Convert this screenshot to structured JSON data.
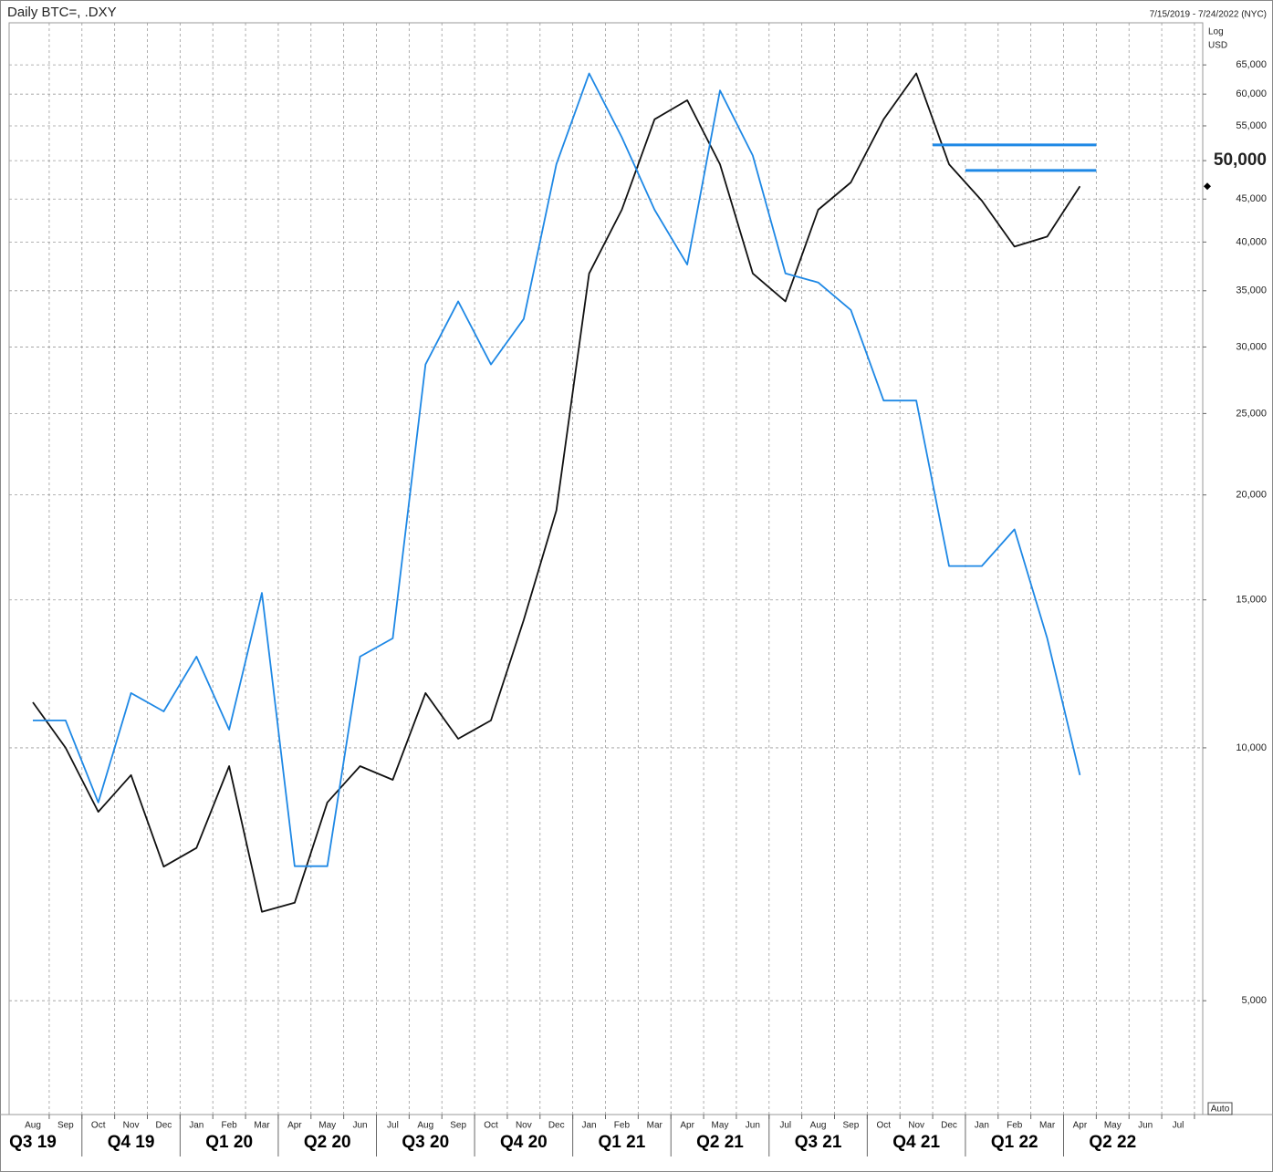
{
  "chart_data": {
    "type": "line",
    "title": "Daily BTC=, .DXY",
    "date_range": "7/15/2019 - 7/24/2022 (NYC)",
    "scale_label": "Log",
    "unit_label": "USD",
    "auto_label": "Auto",
    "log_scale": true,
    "grid": true,
    "last_value_marker": true,
    "x": [
      "2019-08",
      "2019-09",
      "2019-10",
      "2019-11",
      "2019-12",
      "2020-01",
      "2020-02",
      "2020-03",
      "2020-04",
      "2020-05",
      "2020-06",
      "2020-07",
      "2020-08",
      "2020-09",
      "2020-10",
      "2020-11",
      "2020-12",
      "2021-01",
      "2021-02",
      "2021-03",
      "2021-04",
      "2021-05",
      "2021-06",
      "2021-07",
      "2021-08",
      "2021-09",
      "2021-10",
      "2021-11",
      "2021-12",
      "2022-01",
      "2022-02",
      "2022-03",
      "2022-04"
    ],
    "series": [
      {
        "color": "#111111",
        "values": [
          11330,
          10000,
          8390,
          9280,
          7220,
          7600,
          9510,
          6380,
          6540,
          8610,
          9510,
          9160,
          11620,
          10250,
          10780,
          14190,
          19170,
          36700,
          43700,
          56000,
          59000,
          49500,
          36700,
          34000,
          43700,
          47100,
          56000,
          63500,
          49500,
          44800,
          39500,
          40600,
          46600
        ]
      },
      {
        "color": "#1e88e5",
        "values": [
          10780,
          10780,
          8610,
          11620,
          11050,
          12840,
          10510,
          15290,
          7230,
          7230,
          12840,
          13500,
          28600,
          34000,
          28600,
          32400,
          49500,
          63500,
          53300,
          43700,
          37600,
          60600,
          50700,
          36700,
          35800,
          33200,
          25900,
          25900,
          16460,
          16460,
          18200,
          13500,
          9280
        ]
      }
    ],
    "levels": [
      {
        "value": 52200,
        "start": "2021-12",
        "end": "2022-05",
        "color": "#1e88e5"
      },
      {
        "value": 48680,
        "start": "2022-01",
        "end": "2022-05",
        "color": "#1e88e5"
      }
    ],
    "ylim": [
      3660,
      72950
    ],
    "yticks": [
      {
        "value": 5000,
        "label": "5,000"
      },
      {
        "value": 10000,
        "label": "10,000"
      },
      {
        "value": 15000,
        "label": "15,000"
      },
      {
        "value": 20000,
        "label": "20,000"
      },
      {
        "value": 25000,
        "label": "25,000"
      },
      {
        "value": 30000,
        "label": "30,000"
      },
      {
        "value": 35000,
        "label": "35,000"
      },
      {
        "value": 40000,
        "label": "40,000"
      },
      {
        "value": 45000,
        "label": "45,000"
      },
      {
        "value": 50000,
        "label": "50,000",
        "bold": true
      },
      {
        "value": 55000,
        "label": "55,000"
      },
      {
        "value": 60000,
        "label": "60,000"
      },
      {
        "value": 65000,
        "label": "65,000"
      }
    ],
    "xticks": [
      {
        "value": "2019-08",
        "label": "Aug"
      },
      {
        "value": "2019-09",
        "label": "Sep"
      },
      {
        "value": "2019-10",
        "label": "Oct"
      },
      {
        "value": "2019-11",
        "label": "Nov"
      },
      {
        "value": "2019-12",
        "label": "Dec"
      },
      {
        "value": "2020-01",
        "label": "Jan"
      },
      {
        "value": "2020-02",
        "label": "Feb"
      },
      {
        "value": "2020-03",
        "label": "Mar"
      },
      {
        "value": "2020-04",
        "label": "Apr"
      },
      {
        "value": "2020-05",
        "label": "May"
      },
      {
        "value": "2020-06",
        "label": "Jun"
      },
      {
        "value": "2020-07",
        "label": "Jul"
      },
      {
        "value": "2020-08",
        "label": "Aug"
      },
      {
        "value": "2020-09",
        "label": "Sep"
      },
      {
        "value": "2020-10",
        "label": "Oct"
      },
      {
        "value": "2020-11",
        "label": "Nov"
      },
      {
        "value": "2020-12",
        "label": "Dec"
      },
      {
        "value": "2021-01",
        "label": "Jan"
      },
      {
        "value": "2021-02",
        "label": "Feb"
      },
      {
        "value": "2021-03",
        "label": "Mar"
      },
      {
        "value": "2021-04",
        "label": "Apr"
      },
      {
        "value": "2021-05",
        "label": "May"
      },
      {
        "value": "2021-06",
        "label": "Jun"
      },
      {
        "value": "2021-07",
        "label": "Jul"
      },
      {
        "value": "2021-08",
        "label": "Aug"
      },
      {
        "value": "2021-09",
        "label": "Sep"
      },
      {
        "value": "2021-10",
        "label": "Oct"
      },
      {
        "value": "2021-11",
        "label": "Nov"
      },
      {
        "value": "2021-12",
        "label": "Dec"
      },
      {
        "value": "2022-01",
        "label": "Jan"
      },
      {
        "value": "2022-02",
        "label": "Feb"
      },
      {
        "value": "2022-03",
        "label": "Mar"
      },
      {
        "value": "2022-04",
        "label": "Apr"
      },
      {
        "value": "2022-05",
        "label": "May"
      },
      {
        "value": "2022-06",
        "label": "Jun"
      },
      {
        "value": "2022-07",
        "label": "Jul"
      }
    ],
    "quarters": [
      {
        "value": "2019-08",
        "label": "Q3 19"
      },
      {
        "value": "2019-11",
        "label": "Q4 19"
      },
      {
        "value": "2020-02",
        "label": "Q1 20"
      },
      {
        "value": "2020-05",
        "label": "Q2 20"
      },
      {
        "value": "2020-08",
        "label": "Q3 20"
      },
      {
        "value": "2020-11",
        "label": "Q4 20"
      },
      {
        "value": "2021-02",
        "label": "Q1 21"
      },
      {
        "value": "2021-05",
        "label": "Q2 21"
      },
      {
        "value": "2021-08",
        "label": "Q3 21"
      },
      {
        "value": "2021-11",
        "label": "Q4 21"
      },
      {
        "value": "2022-02",
        "label": "Q1 22"
      },
      {
        "value": "2022-05",
        "label": "Q2 22"
      }
    ]
  }
}
